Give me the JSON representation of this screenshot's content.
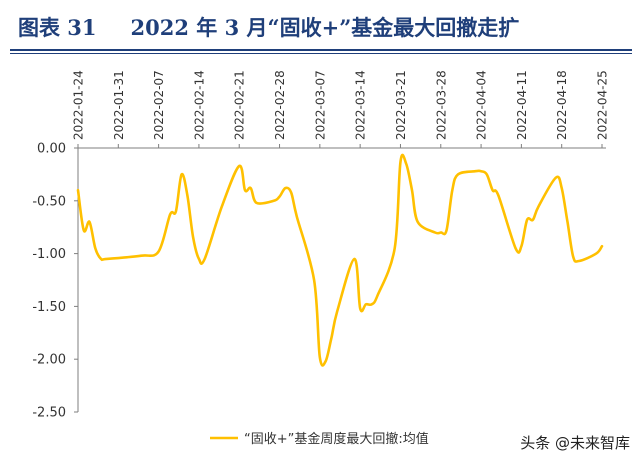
{
  "header": {
    "figure_no": "图表 31",
    "title": "2022 年 3 月“固收+”基金最大回撤走扩"
  },
  "watermark": "头条 @未来智库",
  "colors": {
    "title": "#1f3f7a",
    "line": "#ffc000",
    "axis": "#7f7f7f"
  },
  "chart_data": {
    "type": "line",
    "title": "2022 年 3 月“固收+”基金最大回撤走扩",
    "xlabel": "",
    "ylabel": "",
    "x_ticks": [
      "2022-01-24",
      "2022-01-31",
      "2022-02-07",
      "2022-02-14",
      "2022-02-21",
      "2022-02-28",
      "2022-03-07",
      "2022-03-14",
      "2022-03-21",
      "2022-03-28",
      "2022-04-04",
      "2022-04-11",
      "2022-04-18",
      "2022-04-25"
    ],
    "y_ticks": [
      "0.00",
      "-0.50",
      "-1.00",
      "-1.50",
      "-2.00",
      "-2.50"
    ],
    "ylim": [
      -2.5,
      0
    ],
    "xlim": [
      "2022-01-24",
      "2022-04-25"
    ],
    "legend_position": "bottom",
    "series": [
      {
        "name": "“固收+”基金周度最大回撤:均值",
        "color": "#ffc000",
        "x": [
          "2022-01-24",
          "2022-01-25",
          "2022-01-26",
          "2022-01-27",
          "2022-01-28",
          "2022-01-29",
          "2022-02-04",
          "2022-02-07",
          "2022-02-09",
          "2022-02-10",
          "2022-02-11",
          "2022-02-12",
          "2022-02-13",
          "2022-02-14",
          "2022-02-15",
          "2022-02-18",
          "2022-02-21",
          "2022-02-22",
          "2022-02-23",
          "2022-02-24",
          "2022-02-27",
          "2022-02-28",
          "2022-03-01",
          "2022-03-02",
          "2022-03-03",
          "2022-03-06",
          "2022-03-07",
          "2022-03-08",
          "2022-03-09",
          "2022-03-10",
          "2022-03-13",
          "2022-03-14",
          "2022-03-15",
          "2022-03-16",
          "2022-03-17",
          "2022-03-20",
          "2022-03-21",
          "2022-03-22",
          "2022-03-23",
          "2022-03-24",
          "2022-03-27",
          "2022-03-28",
          "2022-03-29",
          "2022-03-30",
          "2022-03-31",
          "2022-04-03",
          "2022-04-04",
          "2022-04-05",
          "2022-04-06",
          "2022-04-07",
          "2022-04-10",
          "2022-04-11",
          "2022-04-12",
          "2022-04-13",
          "2022-04-14",
          "2022-04-17",
          "2022-04-18",
          "2022-04-19",
          "2022-04-20",
          "2022-04-21",
          "2022-04-24",
          "2022-04-25"
        ],
        "values": [
          -0.4,
          -0.78,
          -0.7,
          -0.95,
          -1.05,
          -1.05,
          -1.02,
          -0.98,
          -0.63,
          -0.6,
          -0.25,
          -0.45,
          -0.85,
          -1.05,
          -1.05,
          -0.55,
          -0.17,
          -0.4,
          -0.38,
          -0.52,
          -0.5,
          -0.46,
          -0.38,
          -0.42,
          -0.65,
          -1.25,
          -1.98,
          -2.02,
          -1.8,
          -1.55,
          -1.05,
          -1.52,
          -1.48,
          -1.48,
          -1.4,
          -0.95,
          -0.13,
          -0.15,
          -0.4,
          -0.7,
          -0.8,
          -0.8,
          -0.78,
          -0.4,
          -0.25,
          -0.22,
          -0.22,
          -0.25,
          -0.4,
          -0.45,
          -0.95,
          -0.93,
          -0.68,
          -0.68,
          -0.55,
          -0.28,
          -0.38,
          -0.7,
          -1.03,
          -1.07,
          -1.0,
          -0.93
        ]
      }
    ]
  }
}
